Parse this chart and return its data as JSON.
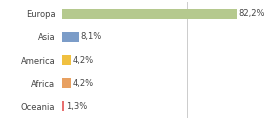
{
  "categories": [
    "Europa",
    "Asia",
    "America",
    "Africa",
    "Oceania"
  ],
  "values": [
    82.2,
    8.1,
    4.2,
    4.2,
    1.3
  ],
  "labels": [
    "82,2%",
    "8,1%",
    "4,2%",
    "4,2%",
    "1,3%"
  ],
  "bar_colors": [
    "#b5c98e",
    "#7b9cc8",
    "#f0c040",
    "#e8a060",
    "#e87070"
  ],
  "xlim": [
    0,
    100
  ],
  "background_color": "#ffffff",
  "label_fontsize": 6.0,
  "tick_fontsize": 6.0,
  "vline_x": 59,
  "vline_color": "#cccccc",
  "bar_height": 0.45
}
